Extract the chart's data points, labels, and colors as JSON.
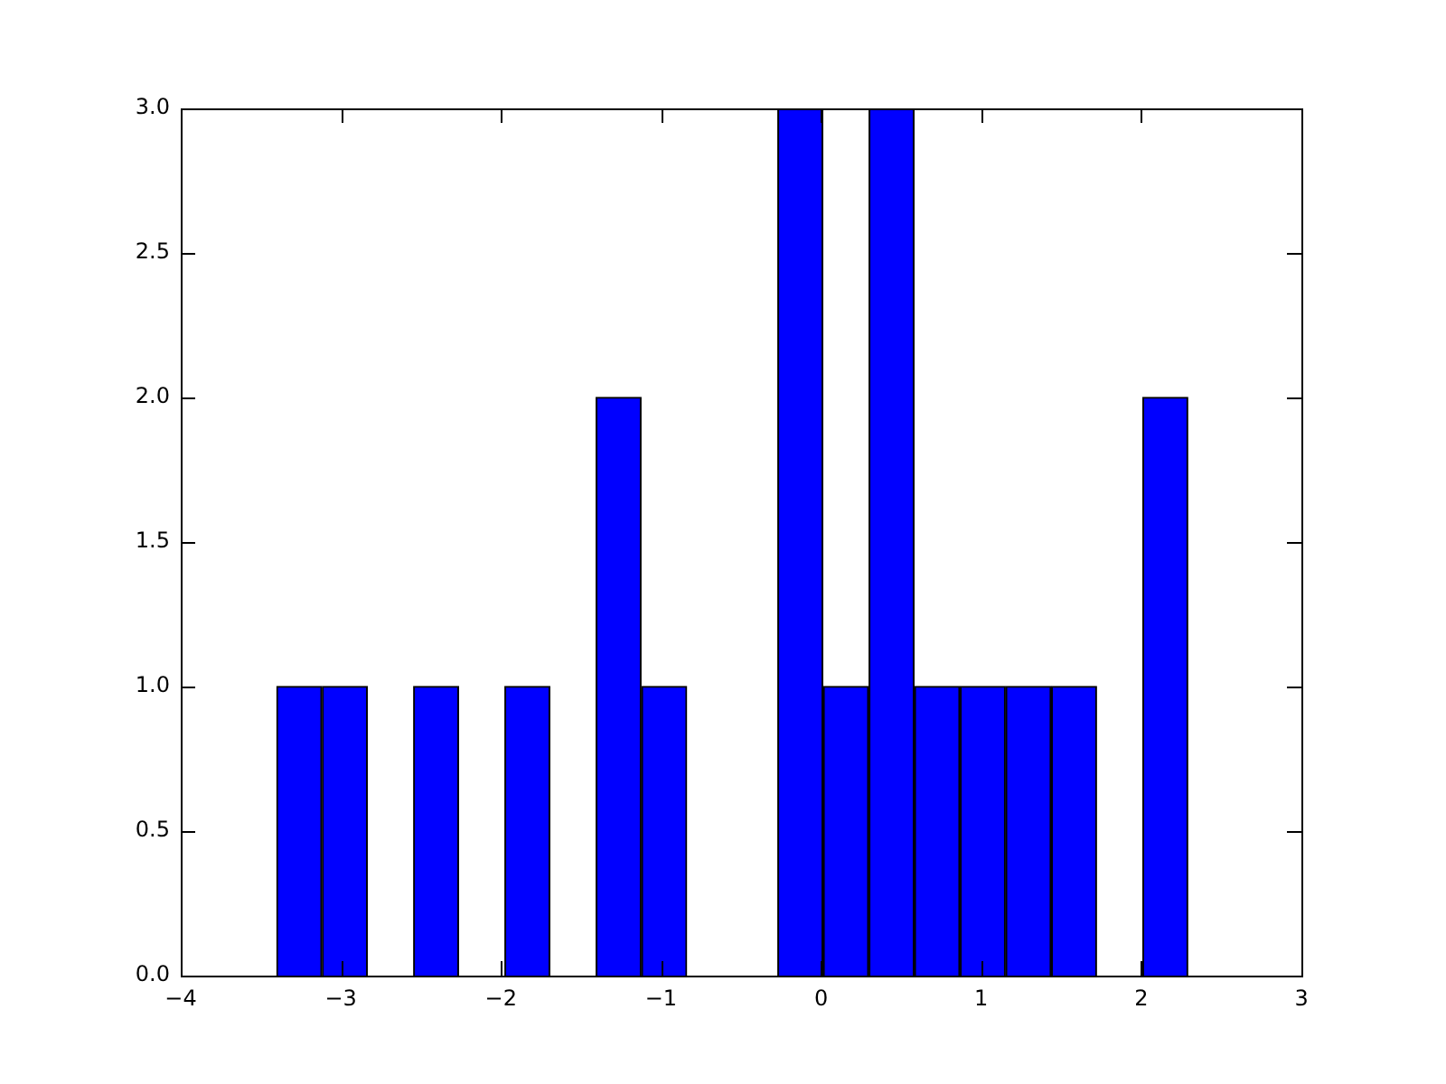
{
  "chart_data": {
    "type": "histogram",
    "bins": [
      -3.4,
      -3.12,
      -2.83,
      -2.55,
      -2.26,
      -1.98,
      -1.69,
      -1.41,
      -1.12,
      -0.84,
      -0.55,
      -0.27,
      0.01,
      0.3,
      0.58,
      0.87,
      1.15,
      1.44,
      1.72,
      2.01,
      2.29
    ],
    "values": [
      1,
      1,
      0,
      1,
      0,
      1,
      0,
      2,
      1,
      0,
      0,
      3,
      1,
      3,
      1,
      1,
      1,
      1,
      0,
      2
    ],
    "color": "#0000ff",
    "xlim": [
      -4,
      3
    ],
    "xticks": [
      {
        "value": -4,
        "label": "−4"
      },
      {
        "value": -3,
        "label": "−3"
      },
      {
        "value": -2,
        "label": "−2"
      },
      {
        "value": -1,
        "label": "−1"
      },
      0,
      1,
      2,
      3
    ],
    "ylim": [
      0,
      3
    ],
    "yticks": [
      {
        "value": 0,
        "label": "0.0"
      },
      {
        "value": 0.5,
        "label": "0.5"
      },
      {
        "value": 1,
        "label": "1.0"
      },
      {
        "value": 1.5,
        "label": "1.5"
      },
      {
        "value": 2,
        "label": "2.0"
      },
      {
        "value": 2.5,
        "label": "2.5"
      },
      {
        "value": 3,
        "label": "3.0"
      }
    ],
    "grid": false,
    "legend": false
  }
}
